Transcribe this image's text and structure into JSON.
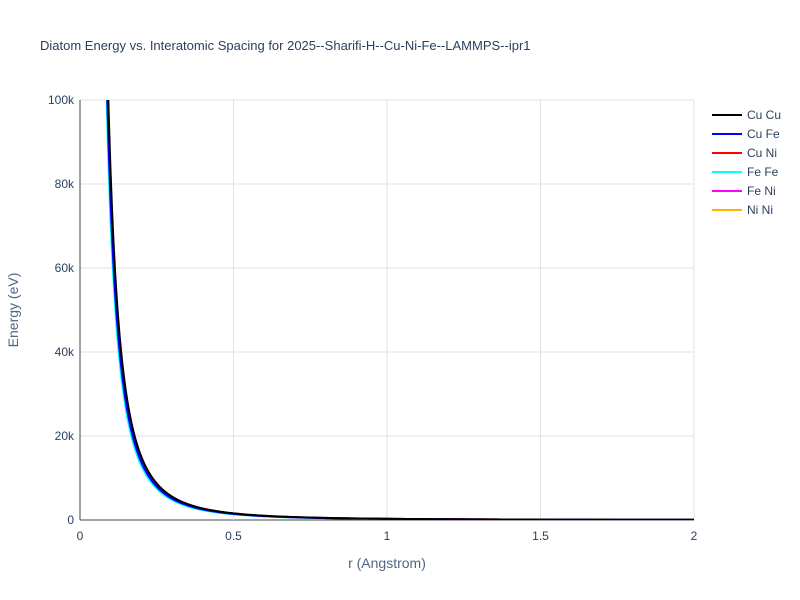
{
  "chart_data": {
    "type": "line",
    "title": "Diatom Energy vs. Interatomic Spacing for 2025--Sharifi-H--Cu-Ni-Fe--LAMMPS--ipr1",
    "xlabel": "r (Angstrom)",
    "ylabel": "Energy (eV)",
    "xlim": [
      0,
      2
    ],
    "ylim": [
      0,
      100000
    ],
    "xticks": [
      0,
      0.5,
      1,
      1.5,
      2
    ],
    "xtick_labels": [
      "0",
      "0.5",
      "1",
      "1.5",
      "2"
    ],
    "yticks": [
      0,
      20000,
      40000,
      60000,
      80000,
      100000
    ],
    "ytick_labels": [
      "0",
      "20k",
      "40k",
      "60k",
      "80k",
      "100k"
    ],
    "grid": true,
    "legend_position": "top-right",
    "series": [
      {
        "name": "Cu Cu",
        "color": "#000000",
        "scale": 1.06,
        "x0": 0.07
      },
      {
        "name": "Cu Fe",
        "color": "#0000ff",
        "scale": 0.97,
        "x0": 0.066
      },
      {
        "name": "Cu Ni",
        "color": "#ff0000",
        "scale": 1.03,
        "x0": 0.068
      },
      {
        "name": "Fe Fe",
        "color": "#00ffff",
        "scale": 0.91,
        "x0": 0.04
      },
      {
        "name": "Fe Ni",
        "color": "#ff00ff",
        "scale": 0.95,
        "x0": 0.062
      },
      {
        "name": "Ni Ni",
        "color": "#ffb300",
        "scale": 1.0,
        "x0": 0.065
      }
    ]
  }
}
